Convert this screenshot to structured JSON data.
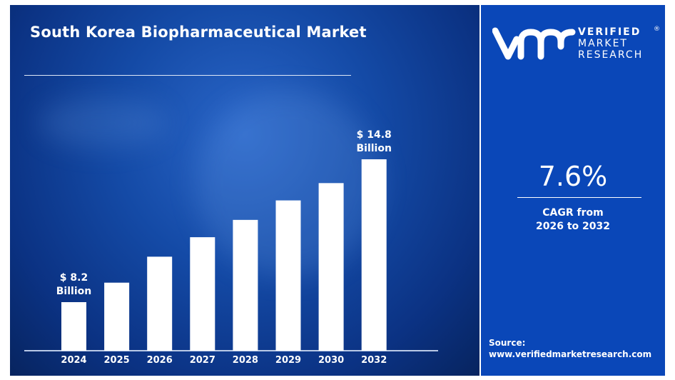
{
  "title": "South Korea Biopharmaceutical Market",
  "brand": {
    "line1": "VERIFIED",
    "line2": "MARKET",
    "line3": "RESEARCH",
    "registered": "®"
  },
  "cagr": {
    "value": "7.6%",
    "label_line1": "CAGR from",
    "label_line2": "2026 to 2032"
  },
  "source": {
    "label": "Source:",
    "url": "www.verifiedmarketresearch.com"
  },
  "colors": {
    "panel": "#0a47b8",
    "bars": "#ffffff",
    "background": "#144aa6"
  },
  "chart_data": {
    "type": "bar",
    "title": "South Korea Biopharmaceutical Market",
    "categories": [
      "2024",
      "2025",
      "2026",
      "2027",
      "2028",
      "2029",
      "2030",
      "2032"
    ],
    "values": [
      8.2,
      9.1,
      10.3,
      11.2,
      12.0,
      12.9,
      13.7,
      14.8
    ],
    "unit": "USD Billion",
    "data_labels": {
      "2024": [
        "$ 8.2",
        "Billion"
      ],
      "2032": [
        "$ 14.8",
        "Billion"
      ]
    },
    "grid": false,
    "legend": "none"
  }
}
